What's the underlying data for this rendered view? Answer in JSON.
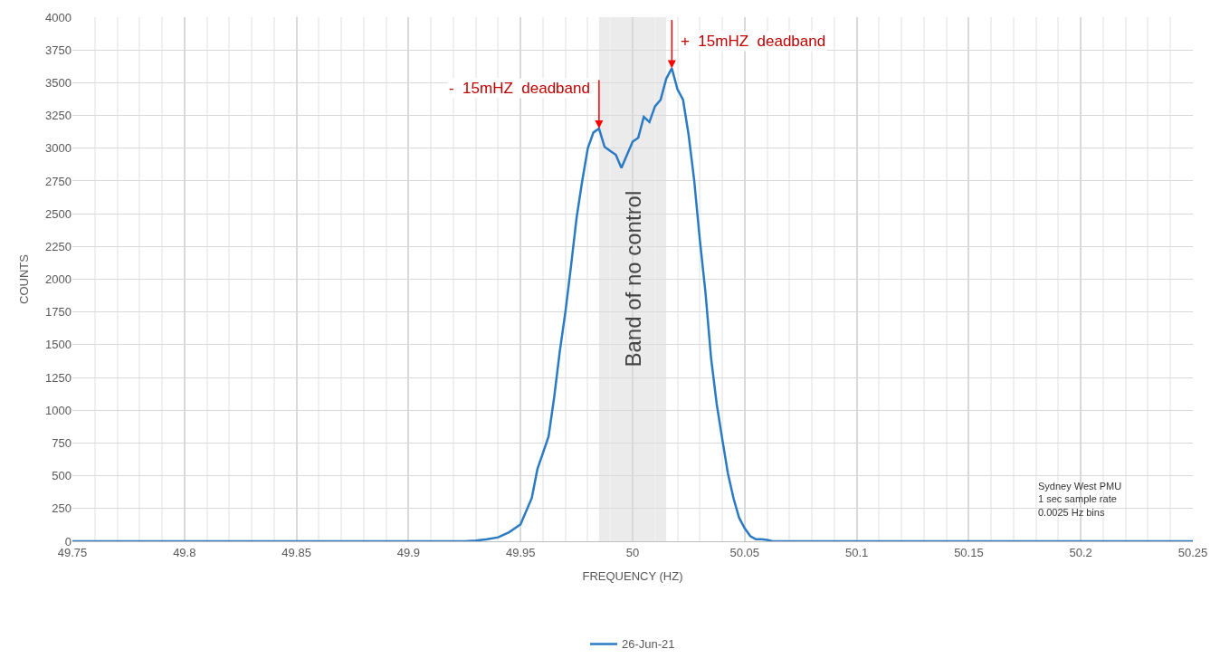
{
  "chart_data": {
    "type": "line",
    "xlabel": "FREQUENCY (HZ)",
    "ylabel": "COUNTS",
    "xlim": [
      49.75,
      50.25
    ],
    "xticks": [
      49.75,
      49.8,
      49.85,
      49.9,
      49.95,
      50,
      50.05,
      50.1,
      50.15,
      50.2,
      50.25
    ],
    "ylim": [
      0,
      4000
    ],
    "yticks": [
      0,
      250,
      500,
      750,
      1000,
      1250,
      1500,
      1750,
      2000,
      2250,
      2500,
      2750,
      3000,
      3250,
      3500,
      3750,
      4000
    ],
    "grid": true,
    "legend": "bottom",
    "marker": "none",
    "line_style": "solid",
    "series": [
      {
        "name": "26-Jun-21",
        "color": "#2a7bc4",
        "x": [
          49.75,
          49.925,
          49.93,
          49.935,
          49.94,
          49.945,
          49.95,
          49.955,
          49.9575,
          49.9625,
          49.965,
          49.9675,
          49.97,
          49.9725,
          49.975,
          49.9775,
          49.98,
          49.9825,
          49.985,
          49.9875,
          49.99,
          49.9925,
          49.995,
          49.9975,
          50,
          50.0025,
          50.005,
          50.0075,
          50.01,
          50.0125,
          50.015,
          50.0175,
          50.02,
          50.0225,
          50.025,
          50.0275,
          50.03,
          50.0325,
          50.035,
          50.0375,
          50.04,
          50.0425,
          50.045,
          50.0475,
          50.05,
          50.0525,
          50.055,
          50.0575,
          50.06,
          50.0625,
          50.25
        ],
        "values": [
          0,
          0,
          5,
          15,
          30,
          70,
          130,
          330,
          550,
          800,
          1100,
          1450,
          1750,
          2100,
          2470,
          2750,
          3000,
          3120,
          3150,
          3010,
          2980,
          2950,
          2850,
          2950,
          3050,
          3080,
          3240,
          3200,
          3320,
          3370,
          3530,
          3610,
          3450,
          3370,
          3100,
          2750,
          2300,
          1900,
          1400,
          1050,
          780,
          520,
          330,
          180,
          100,
          40,
          15,
          15,
          10,
          0,
          0
        ]
      }
    ],
    "bands": [
      {
        "axis": "x",
        "from": 49.985,
        "to": 50.015,
        "label": "Band of no control",
        "color": "#e6e6e6"
      }
    ],
    "annotations": [
      {
        "text": "-  15mHZ  deadband",
        "x": 49.985,
        "y": 3150
      },
      {
        "text": "+  15mHZ  deadband",
        "x": 50.0175,
        "y": 3610
      },
      "Sydney West PMU\n1 sec sample rate\n0.0025 Hz bins"
    ]
  }
}
